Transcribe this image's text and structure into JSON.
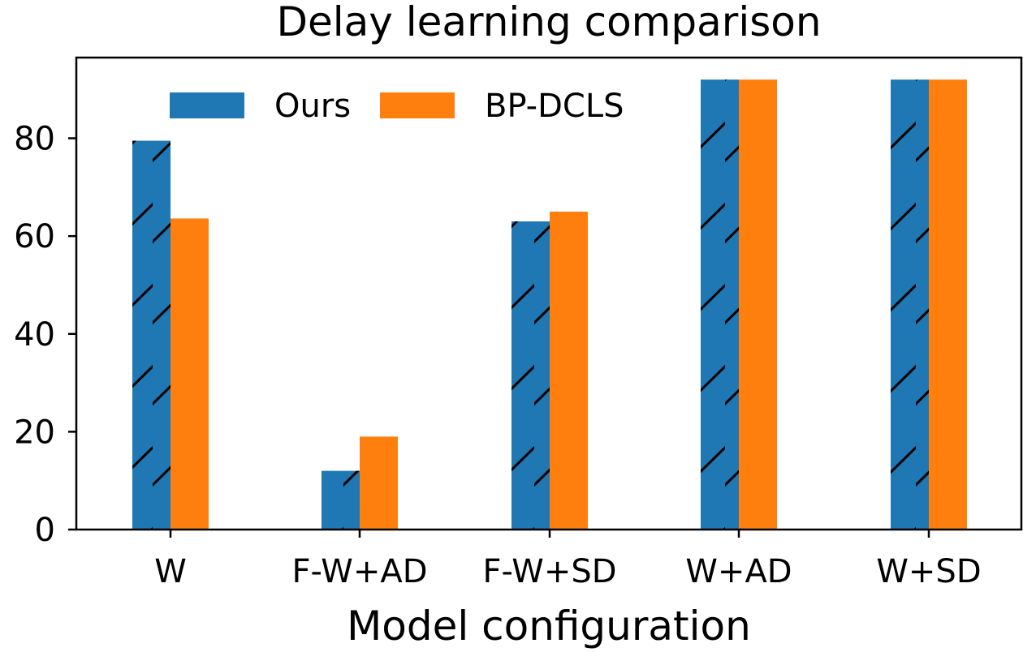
{
  "chart_data": {
    "type": "bar",
    "title": "Delay learning comparison",
    "xlabel": "Model configuration",
    "ylabel": "",
    "categories": [
      "W",
      "F-W+AD",
      "F-W+SD",
      "W+AD",
      "W+SD"
    ],
    "series": [
      {
        "name": "Ours",
        "values": [
          79.5,
          12,
          63,
          92,
          92
        ],
        "color": "#1f77b4",
        "hatch": "diagonal"
      },
      {
        "name": "BP-DCLS",
        "values": [
          63.6,
          19,
          65,
          92,
          92
        ],
        "color": "#ff7f0e",
        "hatch": "none"
      }
    ],
    "ylim": [
      0,
      96.5
    ],
    "yticks": [
      "0",
      "20",
      "40",
      "60",
      "80"
    ],
    "grid": false,
    "legend_position": "upper-center"
  }
}
